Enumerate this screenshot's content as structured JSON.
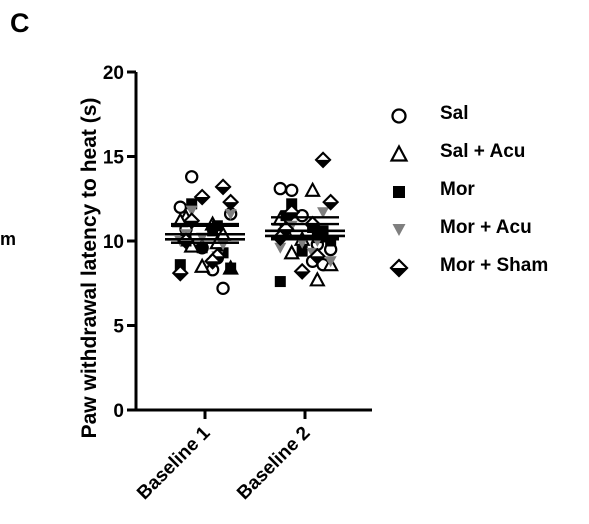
{
  "panel_label": "C",
  "cropped_text": "m",
  "colors": {
    "black": "#000000",
    "gray": "#7f7f7f",
    "background": "#ffffff"
  },
  "chart_data": {
    "type": "scatter",
    "ylabel": "Paw withdrawal latency to heat (s)",
    "xlabel": "",
    "categories": [
      "Baseline 1",
      "Baseline 2"
    ],
    "ylim": [
      0,
      20
    ],
    "yticks": [
      0,
      5,
      10,
      15,
      20
    ],
    "grid": false,
    "legend_position": "right",
    "series": [
      {
        "name": "Sal",
        "marker": "open-circle",
        "color": "#000000",
        "points": [
          [
            "Baseline 1",
            12.0
          ],
          [
            "Baseline 1",
            13.8
          ],
          [
            "Baseline 1",
            9.6
          ],
          [
            "Baseline 1",
            8.3
          ],
          [
            "Baseline 1",
            7.2
          ],
          [
            "Baseline 1",
            11.6
          ],
          [
            "Baseline 1",
            10.7
          ],
          [
            "Baseline 1",
            9.0
          ],
          [
            "Baseline 2",
            13.1
          ],
          [
            "Baseline 2",
            13.0
          ],
          [
            "Baseline 2",
            11.5
          ],
          [
            "Baseline 2",
            8.8
          ],
          [
            "Baseline 2",
            8.6
          ],
          [
            "Baseline 2",
            9.5
          ],
          [
            "Baseline 2",
            11.0
          ],
          [
            "Baseline 2",
            9.8
          ]
        ]
      },
      {
        "name": "Sal + Acu",
        "marker": "open-triangle",
        "color": "#000000",
        "points": [
          [
            "Baseline 1",
            11.0
          ],
          [
            "Baseline 1",
            10.4
          ],
          [
            "Baseline 1",
            8.4
          ],
          [
            "Baseline 1",
            11.4
          ],
          [
            "Baseline 1",
            9.9
          ],
          [
            "Baseline 1",
            11.2
          ],
          [
            "Baseline 1",
            9.7
          ],
          [
            "Baseline 1",
            8.5
          ],
          [
            "Baseline 2",
            13.0
          ],
          [
            "Baseline 2",
            10.3
          ],
          [
            "Baseline 2",
            8.6
          ],
          [
            "Baseline 2",
            10.5
          ],
          [
            "Baseline 2",
            7.7
          ],
          [
            "Baseline 2",
            11.3
          ],
          [
            "Baseline 2",
            9.3
          ],
          [
            "Baseline 2",
            10.1
          ]
        ]
      },
      {
        "name": "Mor",
        "marker": "filled-square",
        "color": "#000000",
        "points": [
          [
            "Baseline 1",
            10.0
          ],
          [
            "Baseline 1",
            10.9
          ],
          [
            "Baseline 1",
            8.6
          ],
          [
            "Baseline 1",
            12.2
          ],
          [
            "Baseline 1",
            9.6
          ],
          [
            "Baseline 1",
            10.6
          ],
          [
            "Baseline 1",
            9.3
          ],
          [
            "Baseline 1",
            8.4
          ],
          [
            "Baseline 2",
            11.5
          ],
          [
            "Baseline 2",
            10.2
          ],
          [
            "Baseline 2",
            7.6
          ],
          [
            "Baseline 2",
            12.2
          ],
          [
            "Baseline 2",
            9.4
          ],
          [
            "Baseline 2",
            10.8
          ],
          [
            "Baseline 2",
            10.6
          ],
          [
            "Baseline 2",
            10.0
          ]
        ]
      },
      {
        "name": "Mor + Acu",
        "marker": "filled-triangle-down",
        "color": "#7f7f7f",
        "points": [
          [
            "Baseline 1",
            11.8
          ],
          [
            "Baseline 1",
            10.2
          ],
          [
            "Baseline 1",
            8.7
          ],
          [
            "Baseline 1",
            9.8
          ],
          [
            "Baseline 1",
            11.6
          ],
          [
            "Baseline 1",
            10.4
          ],
          [
            "Baseline 1",
            9.1
          ],
          [
            "Baseline 1",
            10.0
          ],
          [
            "Baseline 2",
            10.9
          ],
          [
            "Baseline 2",
            9.9
          ],
          [
            "Baseline 2",
            9.3
          ],
          [
            "Baseline 2",
            11.7
          ],
          [
            "Baseline 2",
            8.8
          ],
          [
            "Baseline 2",
            10.4
          ],
          [
            "Baseline 2",
            10.0
          ],
          [
            "Baseline 2",
            9.6
          ]
        ]
      },
      {
        "name": "Mor + Sham",
        "marker": "open-diamond",
        "color": "#000000",
        "points": [
          [
            "Baseline 1",
            13.2
          ],
          [
            "Baseline 1",
            12.3
          ],
          [
            "Baseline 1",
            10.0
          ],
          [
            "Baseline 1",
            9.1
          ],
          [
            "Baseline 1",
            8.1
          ],
          [
            "Baseline 1",
            11.2
          ],
          [
            "Baseline 1",
            12.6
          ],
          [
            "Baseline 1",
            8.8
          ],
          [
            "Baseline 2",
            14.8
          ],
          [
            "Baseline 2",
            12.3
          ],
          [
            "Baseline 2",
            10.7
          ],
          [
            "Baseline 2",
            9.1
          ],
          [
            "Baseline 2",
            10.2
          ],
          [
            "Baseline 2",
            11.7
          ],
          [
            "Baseline 2",
            8.2
          ],
          [
            "Baseline 2",
            11.0
          ]
        ]
      }
    ],
    "summary_lines": [
      {
        "category": "Baseline 1",
        "mean": 10.4,
        "sem_low": 9.9,
        "sem_high": 10.9
      },
      {
        "category": "Baseline 1",
        "mean": 10.1,
        "sem_low": 9.9,
        "sem_high": 11.0
      },
      {
        "category": "Baseline 2",
        "mean": 10.6,
        "sem_low": 10.2,
        "sem_high": 11.4
      },
      {
        "category": "Baseline 2",
        "mean": 10.3,
        "sem_low": 10.1,
        "sem_high": 11.0
      }
    ]
  }
}
